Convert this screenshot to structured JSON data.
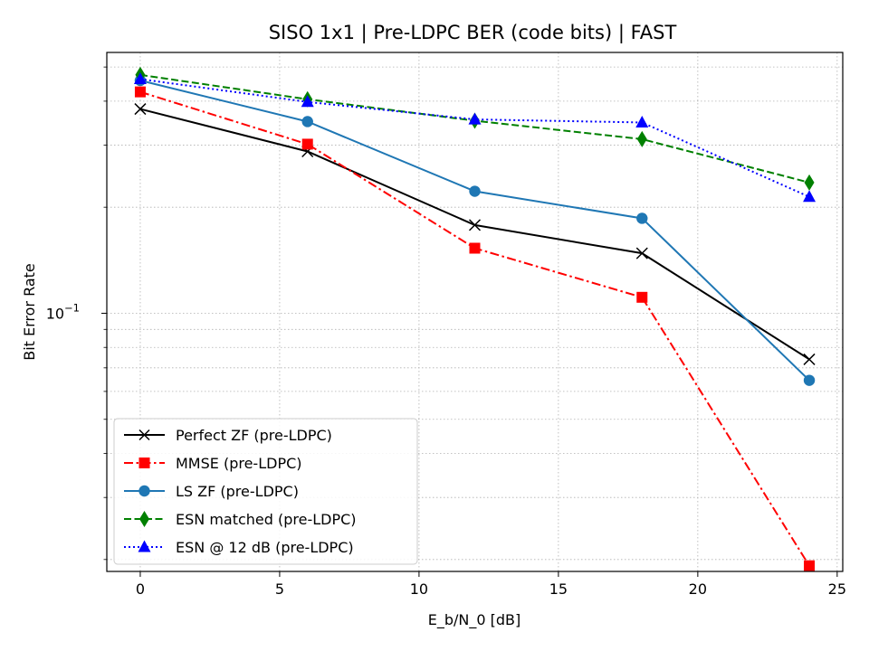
{
  "chart_data": {
    "type": "line",
    "title": "SISO 1x1 | Pre-LDPC BER (code bits) | FAST",
    "xlabel": "E_b/N_0 [dB]",
    "ylabel": "Bit Error Rate",
    "x_scale": "linear",
    "y_scale": "log",
    "xlim": [
      -1.2,
      25.2
    ],
    "ylim": [
      0.0185,
      0.55
    ],
    "x_ticks": [
      0,
      5,
      10,
      15,
      20,
      25
    ],
    "x_tick_labels": [
      "0",
      "5",
      "10",
      "15",
      "20",
      "25"
    ],
    "y_major_ticks": [
      0.1
    ],
    "y_major_tick_labels": [
      "10",
      "−1"
    ],
    "y_minor_ticks": [
      0.02,
      0.03,
      0.04,
      0.05,
      0.06,
      0.07,
      0.08,
      0.09,
      0.2,
      0.3,
      0.4,
      0.5
    ],
    "grid": true,
    "legend_position": "lower-left",
    "x": [
      0,
      6,
      12,
      18,
      24
    ],
    "series": [
      {
        "name": "Perfect ZF (pre-LDPC)",
        "values": [
          0.38,
          0.288,
          0.178,
          0.148,
          0.074
        ],
        "color": "#000000",
        "dash": "solid",
        "marker": "x"
      },
      {
        "name": "MMSE (pre-LDPC)",
        "values": [
          0.425,
          0.302,
          0.153,
          0.111,
          0.0192
        ],
        "color": "#ff0000",
        "dash": "dashdot",
        "marker": "square"
      },
      {
        "name": "LS ZF (pre-LDPC)",
        "values": [
          0.458,
          0.35,
          0.222,
          0.186,
          0.0645
        ],
        "color": "#1f77b4",
        "dash": "solid",
        "marker": "circle"
      },
      {
        "name": "ESN matched (pre-LDPC)",
        "values": [
          0.475,
          0.405,
          0.352,
          0.312,
          0.235
        ],
        "color": "#008000",
        "dash": "dashed",
        "marker": "thin-diamond"
      },
      {
        "name": "ESN @ 12 dB (pre-LDPC)",
        "values": [
          0.462,
          0.398,
          0.355,
          0.348,
          0.214
        ],
        "color": "#0000ff",
        "dash": "dotted",
        "marker": "triangle"
      }
    ]
  }
}
